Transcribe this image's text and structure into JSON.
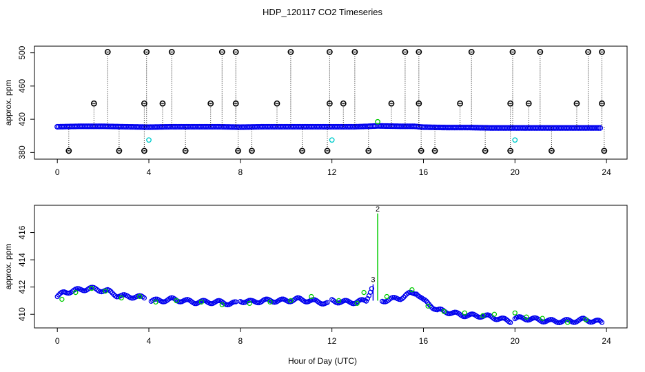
{
  "figure": {
    "title": "HDP_120117  CO2 Timeseries",
    "xlabel": "Hour of Day (UTC)"
  },
  "colors": {
    "primary_series": "#0000ee",
    "secondary_series": "#00cc00",
    "flag_markers": "#000000",
    "cyan_markers": "#00cccc",
    "axis": "#000000"
  },
  "chart_data": [
    {
      "type": "scatter",
      "ylabel": "approx. ppm",
      "xlim": [
        -1.0,
        24.9
      ],
      "ylim": [
        372,
        508
      ],
      "xticks": [
        0,
        4,
        8,
        12,
        16,
        20,
        24
      ],
      "yticks": [
        380,
        420,
        460,
        500
      ],
      "grid": false,
      "description_hint": "raw series with outlier flags clipped at 380 and 500 ppm",
      "series": [
        {
          "role": "baseline",
          "color": "#0000ee",
          "x": [
            0,
            1,
            2,
            3,
            4,
            5,
            6,
            7,
            8,
            9,
            10,
            11,
            12,
            13,
            13.6,
            14,
            15,
            15.6,
            16,
            17,
            18,
            19,
            20,
            21,
            22,
            23,
            23.8
          ],
          "y": [
            411,
            411.5,
            411.5,
            411,
            410.5,
            411,
            411,
            411,
            410.5,
            411,
            411,
            411,
            411,
            411,
            411.5,
            412,
            411.5,
            411.5,
            410.5,
            410,
            410,
            409.5,
            409.5,
            409.5,
            409.5,
            409.5,
            409.5
          ]
        },
        {
          "role": "flag-high",
          "color": "#000000",
          "x": [
            2.2,
            3.9,
            5.0,
            7.2,
            7.8,
            10.2,
            11.9,
            13.0,
            15.2,
            15.8,
            18.1,
            19.9,
            21.1,
            23.2,
            23.8
          ],
          "y": [
            501,
            501,
            501,
            501,
            501,
            501,
            501,
            501,
            501,
            501,
            501,
            501,
            501,
            501,
            501
          ]
        },
        {
          "role": "flag-mid",
          "color": "#000000",
          "x": [
            1.6,
            3.8,
            4.6,
            6.7,
            7.8,
            9.6,
            11.9,
            12.5,
            14.6,
            15.8,
            17.6,
            19.8,
            20.6,
            22.7,
            23.8
          ],
          "y": [
            439,
            439,
            439,
            439,
            439,
            439,
            439,
            439,
            439,
            439,
            439,
            439,
            439,
            439,
            439
          ]
        },
        {
          "role": "flag-low",
          "color": "#000000",
          "x": [
            0.5,
            2.7,
            3.8,
            5.6,
            7.9,
            8.5,
            10.7,
            11.8,
            13.6,
            15.9,
            16.5,
            18.7,
            19.8,
            21.6,
            23.9
          ],
          "y": [
            382,
            382,
            382,
            382,
            382,
            382,
            382,
            382,
            382,
            382,
            382,
            382,
            382,
            382,
            382
          ]
        },
        {
          "role": "cyan",
          "color": "#00cccc",
          "x": [
            4.0,
            12.0,
            20.0
          ],
          "y": [
            395,
            395,
            395
          ]
        },
        {
          "role": "green",
          "color": "#00cc00",
          "x": [
            14.0
          ],
          "y": [
            417
          ]
        }
      ]
    },
    {
      "type": "scatter",
      "ylabel": "approx. ppm",
      "xlim": [
        -1.0,
        24.9
      ],
      "ylim": [
        409.0,
        418.0
      ],
      "xticks": [
        0,
        4,
        8,
        12,
        16,
        20,
        24
      ],
      "yticks": [
        410,
        412,
        414,
        416
      ],
      "grid": false,
      "series": [
        {
          "role": "series-1",
          "color": "#0000ee",
          "x": [
            0.0,
            0.3,
            0.6,
            1.0,
            1.4,
            1.8,
            2.2,
            2.6,
            3.0,
            3.4,
            3.8,
            4.1,
            4.5,
            5.0,
            5.5,
            6.0,
            6.5,
            7.0,
            7.5,
            7.8,
            8.0,
            8.5,
            9.0,
            9.5,
            10.0,
            10.5,
            11.0,
            11.5,
            11.8,
            12.0,
            12.5,
            13.0,
            13.5,
            13.8,
            14.2,
            14.6,
            15.0,
            15.4,
            15.7,
            16.0,
            16.3,
            16.6,
            17.0,
            17.5,
            18.0,
            18.5,
            19.0,
            19.5,
            19.8,
            20.0,
            20.5,
            21.0,
            21.5,
            22.0,
            22.5,
            23.0,
            23.5,
            23.8
          ],
          "y": [
            411.3,
            411.6,
            411.7,
            411.8,
            411.9,
            411.8,
            411.7,
            411.4,
            411.3,
            411.3,
            411.2,
            411.0,
            411.0,
            411.1,
            411.0,
            410.9,
            410.9,
            410.9,
            410.8,
            410.8,
            411.0,
            410.9,
            411.0,
            411.0,
            411.0,
            411.1,
            411.0,
            410.9,
            410.8,
            411.0,
            410.9,
            410.9,
            411.0,
            412.2,
            411.0,
            411.1,
            411.2,
            411.5,
            411.6,
            411.0,
            410.7,
            410.3,
            410.2,
            410.0,
            409.9,
            409.9,
            409.8,
            409.6,
            409.5,
            409.7,
            409.7,
            409.6,
            409.5,
            409.5,
            409.5,
            409.6,
            409.5,
            409.4
          ]
        },
        {
          "role": "series-2",
          "color": "#00cc00",
          "x": [
            0.2,
            0.8,
            1.5,
            2.1,
            2.8,
            3.6,
            4.3,
            5.2,
            6.3,
            7.2,
            8.4,
            9.3,
            10.2,
            11.1,
            12.3,
            13.1,
            13.4,
            14.0,
            14.4,
            15.5,
            16.2,
            16.9,
            17.8,
            18.6,
            19.1,
            20.0,
            20.5,
            21.2,
            22.3,
            23.1
          ],
          "y": [
            411.1,
            411.6,
            411.9,
            411.7,
            411.2,
            411.3,
            410.9,
            411.0,
            410.9,
            410.7,
            410.8,
            410.9,
            411.0,
            411.3,
            411.0,
            410.8,
            411.6,
            417.4,
            411.3,
            411.8,
            410.6,
            410.2,
            410.1,
            409.9,
            410.0,
            410.1,
            409.8,
            409.7,
            409.4,
            409.6
          ]
        }
      ]
    }
  ]
}
